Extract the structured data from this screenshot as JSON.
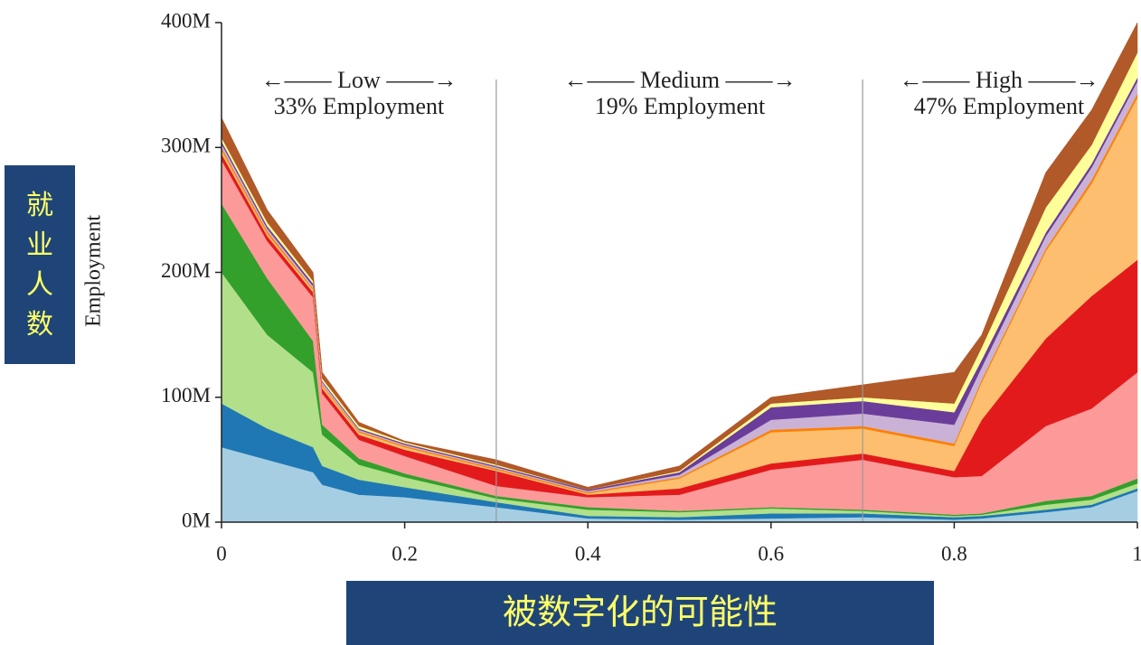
{
  "chart_data": {
    "type": "stacked_area",
    "y_label": "Employment",
    "annotations": [
      {
        "range": "←—— Low ——→",
        "share": "33% Employment"
      },
      {
        "range": "←—— Medium ——→",
        "share": "19% Employment"
      },
      {
        "range": "←—— High ——→",
        "share": "47% Employment"
      }
    ],
    "dividers": [
      0.3,
      0.7
    ],
    "overlay_y": "就业人数",
    "overlay_x": "被数字化的可能性",
    "x": [
      0,
      0.05,
      0.1,
      0.11,
      0.15,
      0.2,
      0.3,
      0.4,
      0.5,
      0.6,
      0.7,
      0.8,
      0.83,
      0.9,
      0.95,
      1
    ],
    "xlim": [
      0,
      1
    ],
    "xticks": [
      0,
      0.2,
      0.4,
      0.6,
      0.8,
      1
    ],
    "ylim": [
      0,
      400
    ],
    "yticks": [
      {
        "value": 0,
        "label": "0M"
      },
      {
        "value": 100,
        "label": "100M"
      },
      {
        "value": 200,
        "label": "200M"
      },
      {
        "value": 300,
        "label": "300M"
      },
      {
        "value": 400,
        "label": "400M"
      }
    ],
    "series": [
      {
        "color": "#a6cee3",
        "values": [
          60,
          50,
          40,
          30,
          22,
          20,
          12,
          3,
          2,
          3,
          4,
          2,
          3,
          8,
          12,
          25
        ]
      },
      {
        "color": "#1f78b4",
        "values": [
          35,
          25,
          20,
          15,
          12,
          8,
          4,
          2,
          2,
          4,
          3,
          2,
          2,
          2,
          2,
          2
        ]
      },
      {
        "color": "#b2df8a",
        "values": [
          105,
          75,
          60,
          25,
          12,
          8,
          3,
          5,
          4,
          4,
          2,
          1,
          1,
          4,
          4,
          4
        ]
      },
      {
        "color": "#33a02c",
        "values": [
          55,
          45,
          25,
          8,
          5,
          3,
          2,
          2,
          1,
          1,
          1,
          1,
          1,
          3,
          3,
          4
        ]
      },
      {
        "color": "#fb9a99",
        "values": [
          35,
          30,
          35,
          25,
          15,
          14,
          8,
          8,
          13,
          30,
          40,
          30,
          30,
          60,
          70,
          85
        ]
      },
      {
        "color": "#e31a1c",
        "values": [
          5,
          4,
          4,
          4,
          4,
          5,
          12,
          2,
          5,
          5,
          5,
          5,
          45,
          70,
          90,
          90
        ]
      },
      {
        "color": "#fdbf6f",
        "values": [
          3,
          2,
          2,
          2,
          2,
          2,
          1,
          1,
          8,
          25,
          20,
          20,
          30,
          70,
          90,
          130
        ]
      },
      {
        "color": "#ff7f00",
        "values": [
          2,
          2,
          1,
          1,
          1,
          1,
          1,
          1,
          1,
          2,
          2,
          2,
          2,
          2,
          3,
          3
        ]
      },
      {
        "color": "#cab2d6",
        "values": [
          3,
          2,
          2,
          2,
          1,
          1,
          1,
          1,
          2,
          8,
          10,
          15,
          10,
          10,
          10,
          10
        ]
      },
      {
        "color": "#6a3d9a",
        "values": [
          2,
          2,
          2,
          1,
          1,
          1,
          1,
          1,
          2,
          10,
          10,
          10,
          6,
          3,
          3,
          3
        ]
      },
      {
        "color": "#ffff99",
        "values": [
          3,
          3,
          2,
          2,
          2,
          1,
          1,
          0,
          1,
          3,
          3,
          7,
          10,
          20,
          15,
          20
        ]
      },
      {
        "color": "#b15928",
        "values": [
          16,
          10,
          7,
          5,
          3,
          1,
          4,
          2,
          4,
          5,
          10,
          25,
          10,
          28,
          28,
          24
        ]
      }
    ]
  }
}
